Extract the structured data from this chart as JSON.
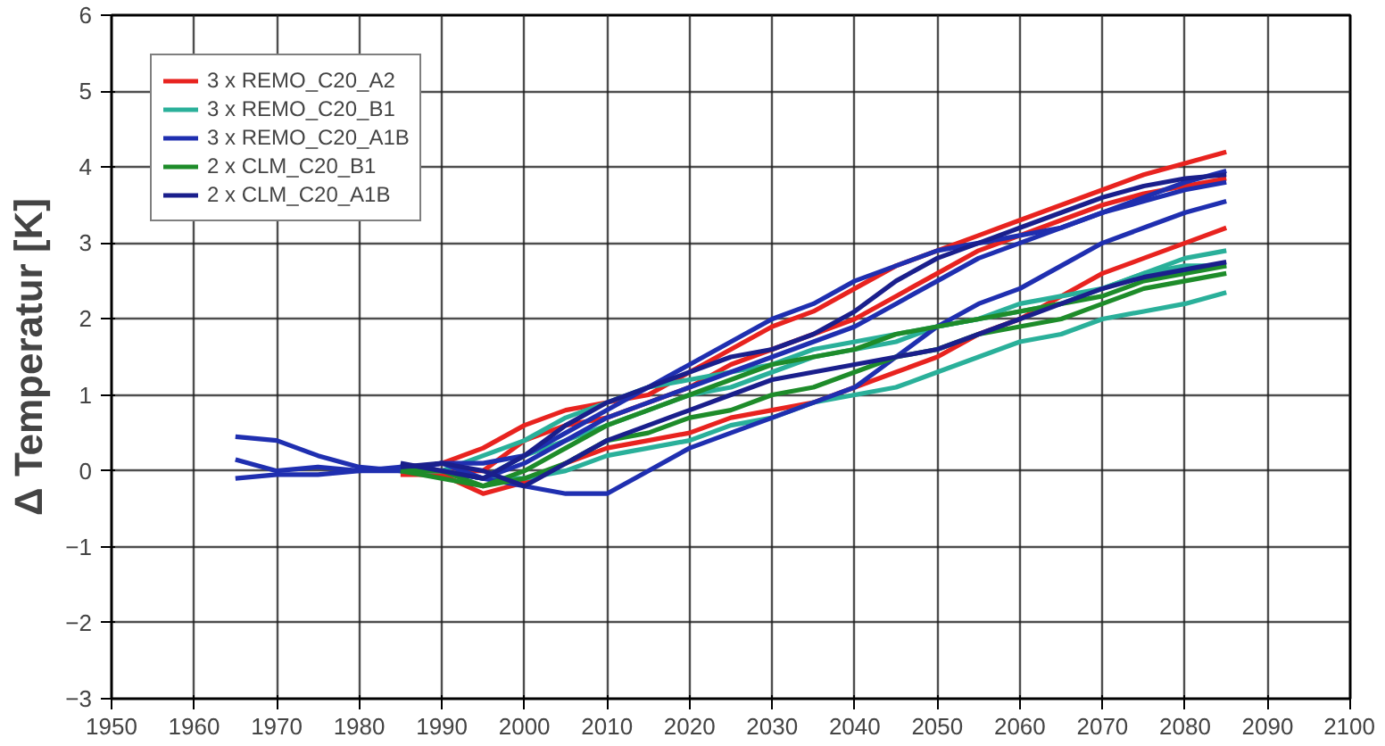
{
  "chart_data": {
    "type": "line",
    "ylabel": "Δ Temperatur [K]",
    "xlim": [
      1950,
      2100
    ],
    "ylim": [
      -3,
      6
    ],
    "xticks": [
      1950,
      1960,
      1970,
      1980,
      1990,
      2000,
      2010,
      2020,
      2030,
      2040,
      2050,
      2060,
      2070,
      2080,
      2090,
      2100
    ],
    "yticks": [
      -3,
      -2,
      -1,
      0,
      1,
      2,
      3,
      4,
      5,
      6
    ],
    "grid": true,
    "legend": "top left",
    "line_style": "solid",
    "marker": "none",
    "series": [
      {
        "name": "3 x REMO_C20_A2",
        "color": "#e8231f",
        "x": [
          1985,
          1990,
          1995,
          2000,
          2005,
          2010,
          2015,
          2020,
          2025,
          2030,
          2035,
          2040,
          2045,
          2050,
          2055,
          2060,
          2065,
          2070,
          2075,
          2080,
          2085
        ],
        "values": [
          0.0,
          0.1,
          0.3,
          0.6,
          0.8,
          0.9,
          1.0,
          1.3,
          1.6,
          1.9,
          2.1,
          2.4,
          2.7,
          2.9,
          3.1,
          3.3,
          3.5,
          3.7,
          3.9,
          4.05,
          4.2
        ]
      },
      {
        "color": "#e8231f",
        "x": [
          1985,
          1990,
          1995,
          2000,
          2005,
          2010,
          2015,
          2020,
          2025,
          2030,
          2035,
          2040,
          2045,
          2050,
          2055,
          2060,
          2065,
          2070,
          2075,
          2080,
          2085
        ],
        "values": [
          0.0,
          0.0,
          0.0,
          0.4,
          0.6,
          0.7,
          0.9,
          1.1,
          1.4,
          1.6,
          1.8,
          2.0,
          2.3,
          2.6,
          2.9,
          3.1,
          3.3,
          3.5,
          3.65,
          3.75,
          3.85
        ]
      },
      {
        "color": "#e8231f",
        "x": [
          1985,
          1990,
          1995,
          2000,
          2005,
          2010,
          2015,
          2020,
          2025,
          2030,
          2035,
          2040,
          2045,
          2050,
          2055,
          2060,
          2065,
          2070,
          2075,
          2080,
          2085
        ],
        "values": [
          -0.05,
          -0.05,
          -0.3,
          -0.15,
          0.1,
          0.3,
          0.4,
          0.5,
          0.7,
          0.8,
          0.9,
          1.1,
          1.3,
          1.5,
          1.8,
          2.0,
          2.3,
          2.6,
          2.8,
          3.0,
          3.2
        ]
      },
      {
        "name": "3 x REMO_C20_B1",
        "color": "#2ab09a",
        "x": [
          1985,
          1990,
          1995,
          2000,
          2005,
          2010,
          2015,
          2020,
          2025,
          2030,
          2035,
          2040,
          2045,
          2050,
          2055,
          2060,
          2065,
          2070,
          2075,
          2080,
          2085
        ],
        "values": [
          0.0,
          0.0,
          0.2,
          0.4,
          0.7,
          0.9,
          1.1,
          1.2,
          1.3,
          1.4,
          1.6,
          1.7,
          1.8,
          1.9,
          2.0,
          2.2,
          2.3,
          2.4,
          2.6,
          2.8,
          2.9
        ]
      },
      {
        "color": "#2ab09a",
        "x": [
          1985,
          1990,
          1995,
          2000,
          2005,
          2010,
          2015,
          2020,
          2025,
          2030,
          2035,
          2040,
          2045,
          2050,
          2055,
          2060,
          2065,
          2070,
          2075,
          2080,
          2085
        ],
        "values": [
          0.0,
          0.0,
          -0.1,
          0.2,
          0.4,
          0.6,
          0.8,
          1.0,
          1.1,
          1.3,
          1.5,
          1.6,
          1.7,
          1.9,
          2.0,
          2.1,
          2.2,
          2.4,
          2.6,
          2.7,
          2.7
        ]
      },
      {
        "color": "#2ab09a",
        "x": [
          1985,
          1990,
          1995,
          2000,
          2005,
          2010,
          2015,
          2020,
          2025,
          2030,
          2035,
          2040,
          2045,
          2050,
          2055,
          2060,
          2065,
          2070,
          2075,
          2080,
          2085
        ],
        "values": [
          0.0,
          0.0,
          -0.1,
          -0.1,
          0.0,
          0.2,
          0.3,
          0.4,
          0.6,
          0.7,
          0.9,
          1.0,
          1.1,
          1.3,
          1.5,
          1.7,
          1.8,
          2.0,
          2.1,
          2.2,
          2.35
        ]
      },
      {
        "name": "3 x REMO_C20_A1B",
        "color": "#1f2fb0",
        "x": [
          1965,
          1970,
          1975,
          1980,
          1985,
          1990,
          1995,
          2000,
          2005,
          2010,
          2015,
          2020,
          2025,
          2030,
          2035,
          2040,
          2045,
          2050,
          2055,
          2060,
          2065,
          2070,
          2075,
          2080,
          2085
        ],
        "values": [
          0.45,
          0.4,
          0.2,
          0.05,
          0.0,
          0.1,
          0.1,
          0.2,
          0.5,
          0.8,
          1.1,
          1.4,
          1.7,
          2.0,
          2.2,
          2.5,
          2.7,
          2.9,
          3.0,
          3.1,
          3.2,
          3.4,
          3.6,
          3.8,
          3.95
        ]
      },
      {
        "color": "#1f2fb0",
        "x": [
          1965,
          1970,
          1975,
          1980,
          1985,
          1990,
          1995,
          2000,
          2005,
          2010,
          2015,
          2020,
          2025,
          2030,
          2035,
          2040,
          2045,
          2050,
          2055,
          2060,
          2065,
          2070,
          2075,
          2080,
          2085
        ],
        "values": [
          0.15,
          0.0,
          0.05,
          0.0,
          0.05,
          0.0,
          -0.1,
          0.1,
          0.4,
          0.7,
          0.9,
          1.1,
          1.3,
          1.5,
          1.7,
          1.9,
          2.2,
          2.5,
          2.8,
          3.0,
          3.2,
          3.4,
          3.55,
          3.7,
          3.8
        ]
      },
      {
        "color": "#1f2fb0",
        "x": [
          1965,
          1970,
          1975,
          1980,
          1985,
          1990,
          1995,
          2000,
          2005,
          2010,
          2015,
          2020,
          2025,
          2030,
          2035,
          2040,
          2045,
          2050,
          2055,
          2060,
          2065,
          2070,
          2075,
          2080,
          2085
        ],
        "values": [
          -0.1,
          -0.05,
          -0.05,
          0.0,
          0.0,
          0.1,
          -0.1,
          -0.2,
          -0.3,
          -0.3,
          0.0,
          0.3,
          0.5,
          0.7,
          0.9,
          1.1,
          1.5,
          1.9,
          2.2,
          2.4,
          2.7,
          3.0,
          3.2,
          3.4,
          3.55
        ]
      },
      {
        "name": "2 x CLM_C20_B1",
        "color": "#1e8c2a",
        "x": [
          1985,
          1990,
          1995,
          2000,
          2005,
          2010,
          2015,
          2020,
          2025,
          2030,
          2035,
          2040,
          2045,
          2050,
          2055,
          2060,
          2065,
          2070,
          2075,
          2080,
          2085
        ],
        "values": [
          0.0,
          0.0,
          -0.2,
          0.0,
          0.3,
          0.6,
          0.8,
          1.0,
          1.2,
          1.4,
          1.5,
          1.6,
          1.8,
          1.9,
          2.0,
          2.1,
          2.2,
          2.3,
          2.5,
          2.6,
          2.7
        ]
      },
      {
        "color": "#1e8c2a",
        "x": [
          1985,
          1990,
          1995,
          2000,
          2005,
          2010,
          2015,
          2020,
          2025,
          2030,
          2035,
          2040,
          2045,
          2050,
          2055,
          2060,
          2065,
          2070,
          2075,
          2080,
          2085
        ],
        "values": [
          0.0,
          -0.1,
          -0.2,
          -0.1,
          0.1,
          0.4,
          0.5,
          0.7,
          0.8,
          1.0,
          1.1,
          1.3,
          1.5,
          1.6,
          1.8,
          1.9,
          2.0,
          2.2,
          2.4,
          2.5,
          2.6
        ]
      },
      {
        "name": "2 x CLM_C20_A1B",
        "color": "#1a1f8c",
        "x": [
          1985,
          1990,
          1995,
          2000,
          2005,
          2010,
          2015,
          2020,
          2025,
          2030,
          2035,
          2040,
          2045,
          2050,
          2055,
          2060,
          2065,
          2070,
          2075,
          2080,
          2085
        ],
        "values": [
          0.1,
          0.0,
          -0.1,
          0.2,
          0.6,
          0.9,
          1.1,
          1.3,
          1.5,
          1.6,
          1.8,
          2.1,
          2.5,
          2.8,
          3.0,
          3.2,
          3.4,
          3.6,
          3.75,
          3.85,
          3.9
        ]
      },
      {
        "color": "#1a1f8c",
        "x": [
          1985,
          1990,
          1995,
          2000,
          2005,
          2010,
          2015,
          2020,
          2025,
          2030,
          2035,
          2040,
          2045,
          2050,
          2055,
          2060,
          2065,
          2070,
          2075,
          2080,
          2085
        ],
        "values": [
          0.05,
          0.1,
          0.0,
          -0.2,
          0.1,
          0.4,
          0.6,
          0.8,
          1.0,
          1.2,
          1.3,
          1.4,
          1.5,
          1.6,
          1.8,
          2.0,
          2.2,
          2.4,
          2.55,
          2.65,
          2.75
        ]
      }
    ]
  }
}
